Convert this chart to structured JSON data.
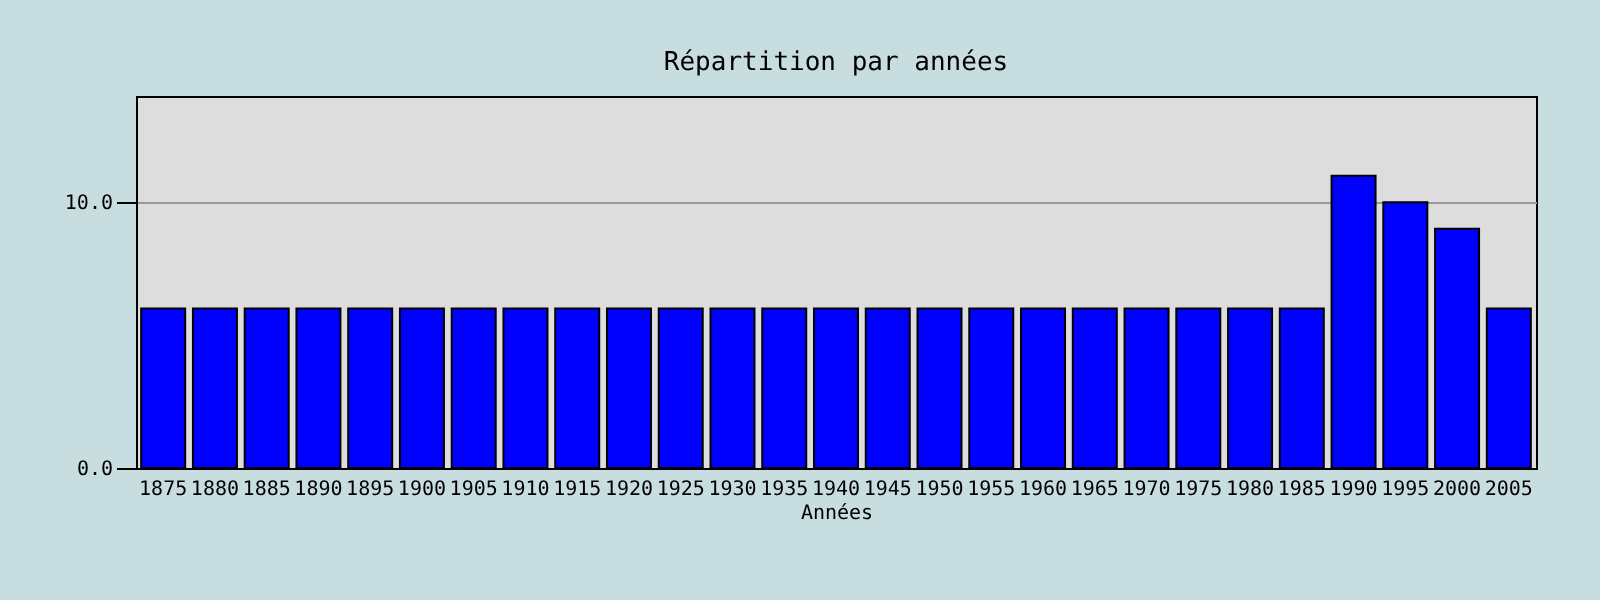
{
  "chart_data": {
    "type": "bar",
    "title": "Répartition par années",
    "xlabel": "Années",
    "categories": [
      "1875",
      "1880",
      "1885",
      "1890",
      "1895",
      "1900",
      "1905",
      "1910",
      "1915",
      "1920",
      "1925",
      "1930",
      "1935",
      "1940",
      "1945",
      "1950",
      "1955",
      "1960",
      "1965",
      "1970",
      "1975",
      "1980",
      "1985",
      "1990",
      "1995",
      "2000",
      "2005"
    ],
    "values": [
      6,
      6,
      6,
      6,
      6,
      6,
      6,
      6,
      6,
      6,
      6,
      6,
      6,
      6,
      6,
      6,
      6,
      6,
      6,
      6,
      6,
      6,
      6,
      11,
      10,
      9,
      6
    ],
    "color": "#0000ff",
    "ylim": [
      0,
      14
    ],
    "yticks": [
      {
        "value": 0,
        "label": "0.0"
      },
      {
        "value": 10,
        "label": "10.0"
      }
    ],
    "grid": "y"
  }
}
